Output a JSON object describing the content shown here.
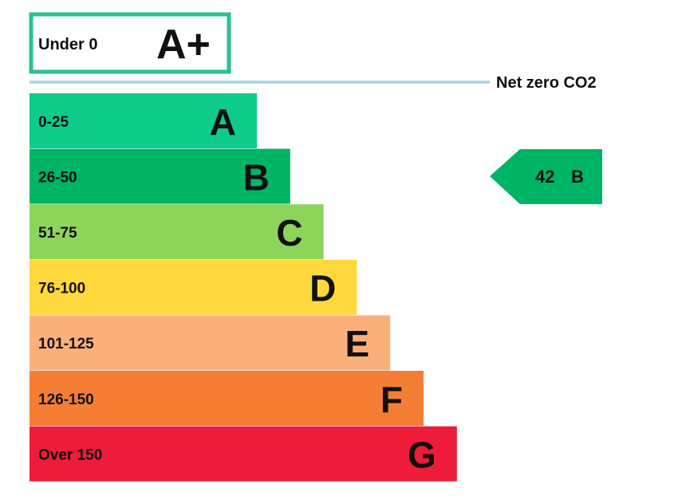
{
  "chart_data": {
    "type": "bar",
    "a_plus": {
      "range": "Under 0",
      "letter": "A+",
      "color": "#2cc08e"
    },
    "net_zero_label": "Net zero CO2",
    "net_zero_line_color": "#a9d8e6",
    "bands": [
      {
        "range": "0-25",
        "letter": "A",
        "upper": 25,
        "color": "#0ecb8a"
      },
      {
        "range": "26-50",
        "letter": "B",
        "upper": 50,
        "color": "#00b466"
      },
      {
        "range": "51-75",
        "letter": "C",
        "upper": 75,
        "color": "#8dd45b"
      },
      {
        "range": "76-100",
        "letter": "D",
        "upper": 100,
        "color": "#ffd83e"
      },
      {
        "range": "101-125",
        "letter": "E",
        "upper": 125,
        "color": "#fbb07c"
      },
      {
        "range": "126-150",
        "letter": "F",
        "upper": 150,
        "color": "#f47e34"
      },
      {
        "range": "Over 150",
        "letter": "G",
        "upper": 175,
        "color": "#ed1c3a"
      }
    ],
    "rating": {
      "value": 42,
      "letter": "B",
      "color": "#00b466"
    }
  }
}
